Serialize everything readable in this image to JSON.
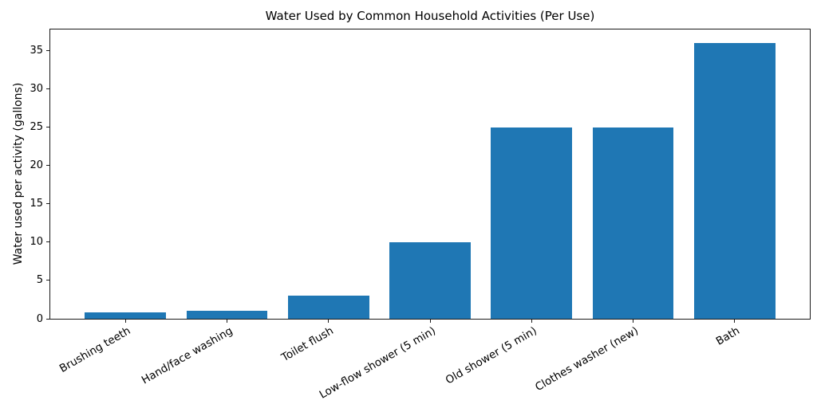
{
  "chart_data": {
    "type": "bar",
    "title": "Water Used by Common Household Activities (Per Use)",
    "xlabel": "",
    "ylabel": "Water used per activity (gallons)",
    "categories": [
      "Brushing teeth",
      "Hand/face washing",
      "Toilet flush",
      "Low-flow shower (5 min)",
      "Old shower (5 min)",
      "Clothes washer (new)",
      "Bath"
    ],
    "values": [
      0.8,
      1,
      3,
      10,
      25,
      25,
      36
    ],
    "yticks": [
      0,
      5,
      10,
      15,
      20,
      25,
      30,
      35
    ],
    "ylim": [
      0,
      37.8
    ],
    "grid": false,
    "legend": "none",
    "x_tick_rotation_deg": 30,
    "bar_color": "#1f77b4",
    "axis_color": "#1a1a1a",
    "text_color": "#000000",
    "background_color": "#ffffff"
  }
}
